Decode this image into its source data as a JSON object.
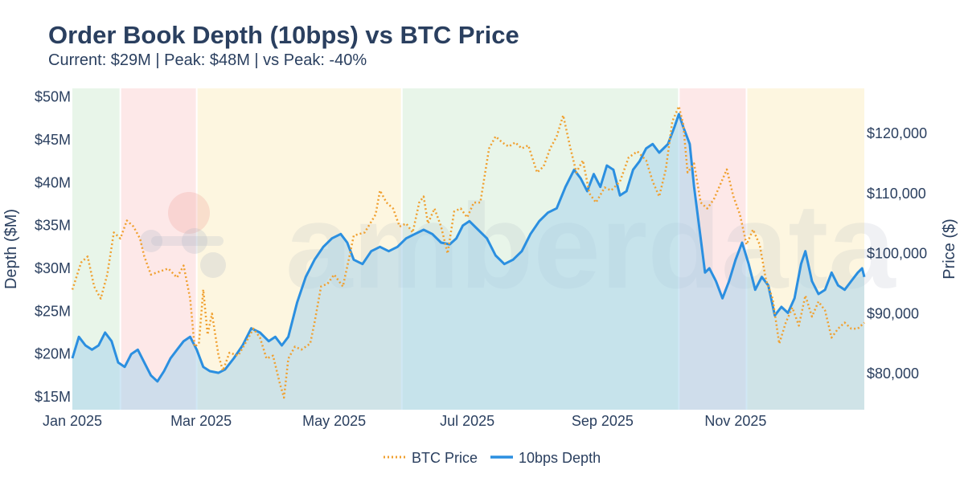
{
  "header": {
    "title": "Order Book Depth (10bps) vs BTC Price",
    "subtitle": "Current: $29M | Peak: $48M | vs Peak: -40%"
  },
  "watermark": "amberdata",
  "chart_data": {
    "type": "line",
    "title": "Order Book Depth (10bps) vs BTC Price",
    "subtitle": "Current: $29M | Peak: $48M | vs Peak: -40%",
    "ylabel_left": "Depth ($M)",
    "ylabel_right": "Price ($)",
    "x_range": [
      "2025-01-01",
      "2025-12-30"
    ],
    "y_left_range": [
      13.5,
      51
    ],
    "y_right_range": [
      74000,
      127500
    ],
    "x_ticks": [
      {
        "date": "2025-01-01",
        "label": "Jan 2025"
      },
      {
        "date": "2025-03-01",
        "label": "Mar 2025"
      },
      {
        "date": "2025-05-01",
        "label": "May 2025"
      },
      {
        "date": "2025-07-01",
        "label": "Jul 2025"
      },
      {
        "date": "2025-09-01",
        "label": "Sep 2025"
      },
      {
        "date": "2025-11-01",
        "label": "Nov 2025"
      }
    ],
    "y_left_ticks": [
      {
        "value": 15,
        "label": "$15M"
      },
      {
        "value": 20,
        "label": "$20M"
      },
      {
        "value": 25,
        "label": "$25M"
      },
      {
        "value": 30,
        "label": "$30M"
      },
      {
        "value": 35,
        "label": "$35M"
      },
      {
        "value": 40,
        "label": "$40M"
      },
      {
        "value": 45,
        "label": "$45M"
      },
      {
        "value": 50,
        "label": "$50M"
      }
    ],
    "y_right_ticks": [
      {
        "value": 80000,
        "label": "$80,000"
      },
      {
        "value": 90000,
        "label": "$90,000"
      },
      {
        "value": 100000,
        "label": "$100,000"
      },
      {
        "value": 110000,
        "label": "$110,000"
      },
      {
        "value": 120000,
        "label": "$120,000"
      }
    ],
    "regions": [
      {
        "start": "2025-01-01",
        "end": "2025-01-23",
        "color": "#e8f5e9"
      },
      {
        "start": "2025-01-23",
        "end": "2025-02-27",
        "color": "#fde8e8"
      },
      {
        "start": "2025-02-27",
        "end": "2025-06-01",
        "color": "#fdf6e0"
      },
      {
        "start": "2025-06-01",
        "end": "2025-10-06",
        "color": "#e8f5e9"
      },
      {
        "start": "2025-10-06",
        "end": "2025-11-06",
        "color": "#fde8e8"
      },
      {
        "start": "2025-11-06",
        "end": "2025-12-30",
        "color": "#fdf6e0"
      }
    ],
    "series": [
      {
        "name": "BTC Price",
        "axis": "right",
        "color": "#f0a030",
        "style": "dotted",
        "points": [
          [
            "2025-01-01",
            94000
          ],
          [
            "2025-01-05",
            98500
          ],
          [
            "2025-01-08",
            99500
          ],
          [
            "2025-01-11",
            94500
          ],
          [
            "2025-01-14",
            92500
          ],
          [
            "2025-01-17",
            96500
          ],
          [
            "2025-01-20",
            103500
          ],
          [
            "2025-01-23",
            102500
          ],
          [
            "2025-01-26",
            105500
          ],
          [
            "2025-01-29",
            104500
          ],
          [
            "2025-02-01",
            102500
          ],
          [
            "2025-02-03",
            99500
          ],
          [
            "2025-02-06",
            96500
          ],
          [
            "2025-02-10",
            97000
          ],
          [
            "2025-02-14",
            97500
          ],
          [
            "2025-02-18",
            96000
          ],
          [
            "2025-02-21",
            98000
          ],
          [
            "2025-02-24",
            92500
          ],
          [
            "2025-02-26",
            84500
          ],
          [
            "2025-02-28",
            85000
          ],
          [
            "2025-03-02",
            94000
          ],
          [
            "2025-03-04",
            86500
          ],
          [
            "2025-03-06",
            90000
          ],
          [
            "2025-03-09",
            83000
          ],
          [
            "2025-03-11",
            80500
          ],
          [
            "2025-03-14",
            83500
          ],
          [
            "2025-03-18",
            83000
          ],
          [
            "2025-03-22",
            85500
          ],
          [
            "2025-03-25",
            87500
          ],
          [
            "2025-03-28",
            86000
          ],
          [
            "2025-03-31",
            82500
          ],
          [
            "2025-04-03",
            83000
          ],
          [
            "2025-04-06",
            78500
          ],
          [
            "2025-04-08",
            76000
          ],
          [
            "2025-04-10",
            82500
          ],
          [
            "2025-04-13",
            84500
          ],
          [
            "2025-04-16",
            84000
          ],
          [
            "2025-04-20",
            85000
          ],
          [
            "2025-04-22",
            88500
          ],
          [
            "2025-04-25",
            94500
          ],
          [
            "2025-04-28",
            95000
          ],
          [
            "2025-05-01",
            96500
          ],
          [
            "2025-05-05",
            94500
          ],
          [
            "2025-05-08",
            99500
          ],
          [
            "2025-05-10",
            103000
          ],
          [
            "2025-05-15",
            103500
          ],
          [
            "2025-05-20",
            106500
          ],
          [
            "2025-05-22",
            110500
          ],
          [
            "2025-05-25",
            108500
          ],
          [
            "2025-05-28",
            107500
          ],
          [
            "2025-05-31",
            104500
          ],
          [
            "2025-06-03",
            105000
          ],
          [
            "2025-06-06",
            103500
          ],
          [
            "2025-06-09",
            108500
          ],
          [
            "2025-06-11",
            109500
          ],
          [
            "2025-06-13",
            105000
          ],
          [
            "2025-06-16",
            107500
          ],
          [
            "2025-06-19",
            104500
          ],
          [
            "2025-06-22",
            100000
          ],
          [
            "2025-06-25",
            107000
          ],
          [
            "2025-06-28",
            107500
          ],
          [
            "2025-07-01",
            106000
          ],
          [
            "2025-07-04",
            108500
          ],
          [
            "2025-07-07",
            108500
          ],
          [
            "2025-07-11",
            117500
          ],
          [
            "2025-07-14",
            119500
          ],
          [
            "2025-07-17",
            118500
          ],
          [
            "2025-07-20",
            117800
          ],
          [
            "2025-07-23",
            118500
          ],
          [
            "2025-07-26",
            117500
          ],
          [
            "2025-07-29",
            118000
          ],
          [
            "2025-08-02",
            113500
          ],
          [
            "2025-08-05",
            114500
          ],
          [
            "2025-08-08",
            117500
          ],
          [
            "2025-08-11",
            119500
          ],
          [
            "2025-08-14",
            123000
          ],
          [
            "2025-08-17",
            118000
          ],
          [
            "2025-08-20",
            113500
          ],
          [
            "2025-08-23",
            115500
          ],
          [
            "2025-08-26",
            110000
          ],
          [
            "2025-08-29",
            108500
          ],
          [
            "2025-09-02",
            111000
          ],
          [
            "2025-09-05",
            110500
          ],
          [
            "2025-09-09",
            112000
          ],
          [
            "2025-09-13",
            116000
          ],
          [
            "2025-09-17",
            117000
          ],
          [
            "2025-09-21",
            115500
          ],
          [
            "2025-09-24",
            112000
          ],
          [
            "2025-09-27",
            109500
          ],
          [
            "2025-09-30",
            114000
          ],
          [
            "2025-10-03",
            122000
          ],
          [
            "2025-10-06",
            124500
          ],
          [
            "2025-10-08",
            121500
          ],
          [
            "2025-10-10",
            113500
          ],
          [
            "2025-10-13",
            115000
          ],
          [
            "2025-10-16",
            108500
          ],
          [
            "2025-10-19",
            107500
          ],
          [
            "2025-10-22",
            109000
          ],
          [
            "2025-10-25",
            111500
          ],
          [
            "2025-10-28",
            114000
          ],
          [
            "2025-10-31",
            109500
          ],
          [
            "2025-11-03",
            106500
          ],
          [
            "2025-11-06",
            101500
          ],
          [
            "2025-11-09",
            104000
          ],
          [
            "2025-11-12",
            101500
          ],
          [
            "2025-11-15",
            95500
          ],
          [
            "2025-11-18",
            92500
          ],
          [
            "2025-11-21",
            85000
          ],
          [
            "2025-11-24",
            88500
          ],
          [
            "2025-11-27",
            91000
          ],
          [
            "2025-11-30",
            88000
          ],
          [
            "2025-12-03",
            93000
          ],
          [
            "2025-12-06",
            89500
          ],
          [
            "2025-12-09",
            92000
          ],
          [
            "2025-12-12",
            90500
          ],
          [
            "2025-12-15",
            86000
          ],
          [
            "2025-12-18",
            87500
          ],
          [
            "2025-12-21",
            88500
          ],
          [
            "2025-12-24",
            87500
          ],
          [
            "2025-12-27",
            87500
          ],
          [
            "2025-12-30",
            88500
          ]
        ]
      },
      {
        "name": "10bps Depth",
        "axis": "left",
        "color": "#2b8fe0",
        "style": "solid",
        "fill": "#a9d4ec",
        "points": [
          [
            "2025-01-01",
            19.5
          ],
          [
            "2025-01-04",
            22.0
          ],
          [
            "2025-01-07",
            21.0
          ],
          [
            "2025-01-10",
            20.5
          ],
          [
            "2025-01-13",
            21.0
          ],
          [
            "2025-01-16",
            22.5
          ],
          [
            "2025-01-19",
            21.5
          ],
          [
            "2025-01-22",
            19.0
          ],
          [
            "2025-01-25",
            18.5
          ],
          [
            "2025-01-28",
            20.0
          ],
          [
            "2025-01-31",
            20.5
          ],
          [
            "2025-02-03",
            19.0
          ],
          [
            "2025-02-06",
            17.5
          ],
          [
            "2025-02-09",
            16.8
          ],
          [
            "2025-02-12",
            18.0
          ],
          [
            "2025-02-15",
            19.5
          ],
          [
            "2025-02-18",
            20.5
          ],
          [
            "2025-02-21",
            21.5
          ],
          [
            "2025-02-24",
            22.0
          ],
          [
            "2025-02-27",
            20.5
          ],
          [
            "2025-03-02",
            18.5
          ],
          [
            "2025-03-05",
            18.0
          ],
          [
            "2025-03-09",
            17.8
          ],
          [
            "2025-03-12",
            18.2
          ],
          [
            "2025-03-16",
            19.5
          ],
          [
            "2025-03-20",
            21.0
          ],
          [
            "2025-03-24",
            23.0
          ],
          [
            "2025-03-28",
            22.5
          ],
          [
            "2025-04-01",
            21.5
          ],
          [
            "2025-04-04",
            22.0
          ],
          [
            "2025-04-07",
            21.0
          ],
          [
            "2025-04-10",
            22.0
          ],
          [
            "2025-04-14",
            26.0
          ],
          [
            "2025-04-18",
            29.0
          ],
          [
            "2025-04-22",
            31.0
          ],
          [
            "2025-04-26",
            32.5
          ],
          [
            "2025-04-30",
            33.5
          ],
          [
            "2025-05-04",
            34.0
          ],
          [
            "2025-05-07",
            33.0
          ],
          [
            "2025-05-10",
            31.0
          ],
          [
            "2025-05-14",
            30.5
          ],
          [
            "2025-05-18",
            32.0
          ],
          [
            "2025-05-22",
            32.5
          ],
          [
            "2025-05-26",
            32.0
          ],
          [
            "2025-05-30",
            32.5
          ],
          [
            "2025-06-03",
            33.5
          ],
          [
            "2025-06-07",
            34.0
          ],
          [
            "2025-06-11",
            34.5
          ],
          [
            "2025-06-15",
            34.0
          ],
          [
            "2025-06-19",
            33.0
          ],
          [
            "2025-06-23",
            32.8
          ],
          [
            "2025-06-26",
            33.5
          ],
          [
            "2025-06-29",
            35.0
          ],
          [
            "2025-07-02",
            35.5
          ],
          [
            "2025-07-06",
            34.5
          ],
          [
            "2025-07-10",
            33.5
          ],
          [
            "2025-07-14",
            31.5
          ],
          [
            "2025-07-18",
            30.5
          ],
          [
            "2025-07-22",
            31.0
          ],
          [
            "2025-07-26",
            32.0
          ],
          [
            "2025-07-30",
            34.0
          ],
          [
            "2025-08-03",
            35.5
          ],
          [
            "2025-08-07",
            36.5
          ],
          [
            "2025-08-11",
            37.0
          ],
          [
            "2025-08-15",
            39.5
          ],
          [
            "2025-08-19",
            41.5
          ],
          [
            "2025-08-22",
            40.5
          ],
          [
            "2025-08-25",
            39.0
          ],
          [
            "2025-08-28",
            41.0
          ],
          [
            "2025-08-31",
            39.5
          ],
          [
            "2025-09-03",
            42.0
          ],
          [
            "2025-09-06",
            41.5
          ],
          [
            "2025-09-09",
            38.5
          ],
          [
            "2025-09-12",
            39.0
          ],
          [
            "2025-09-15",
            41.5
          ],
          [
            "2025-09-18",
            42.5
          ],
          [
            "2025-09-21",
            44.0
          ],
          [
            "2025-09-24",
            44.5
          ],
          [
            "2025-09-27",
            43.5
          ],
          [
            "2025-10-01",
            44.5
          ],
          [
            "2025-10-04",
            46.5
          ],
          [
            "2025-10-06",
            48.0
          ],
          [
            "2025-10-08",
            46.5
          ],
          [
            "2025-10-11",
            44.5
          ],
          [
            "2025-10-13",
            39.5
          ],
          [
            "2025-10-16",
            33.5
          ],
          [
            "2025-10-18",
            29.5
          ],
          [
            "2025-10-20",
            30.0
          ],
          [
            "2025-10-23",
            28.5
          ],
          [
            "2025-10-26",
            26.5
          ],
          [
            "2025-10-29",
            28.5
          ],
          [
            "2025-11-01",
            31.0
          ],
          [
            "2025-11-04",
            33.0
          ],
          [
            "2025-11-07",
            30.5
          ],
          [
            "2025-11-10",
            27.5
          ],
          [
            "2025-11-13",
            29.0
          ],
          [
            "2025-11-16",
            28.0
          ],
          [
            "2025-11-19",
            24.5
          ],
          [
            "2025-11-22",
            25.5
          ],
          [
            "2025-11-25",
            24.8
          ],
          [
            "2025-11-28",
            26.5
          ],
          [
            "2025-12-01",
            30.5
          ],
          [
            "2025-12-03",
            32.0
          ],
          [
            "2025-12-06",
            28.5
          ],
          [
            "2025-12-09",
            27.0
          ],
          [
            "2025-12-12",
            27.5
          ],
          [
            "2025-12-15",
            29.5
          ],
          [
            "2025-12-18",
            28.0
          ],
          [
            "2025-12-21",
            27.5
          ],
          [
            "2025-12-24",
            28.5
          ],
          [
            "2025-12-27",
            29.5
          ],
          [
            "2025-12-29",
            30.0
          ],
          [
            "2025-12-30",
            29.0
          ]
        ]
      }
    ],
    "legend": {
      "position": "bottom-center",
      "items": [
        "BTC Price",
        "10bps Depth"
      ]
    }
  }
}
